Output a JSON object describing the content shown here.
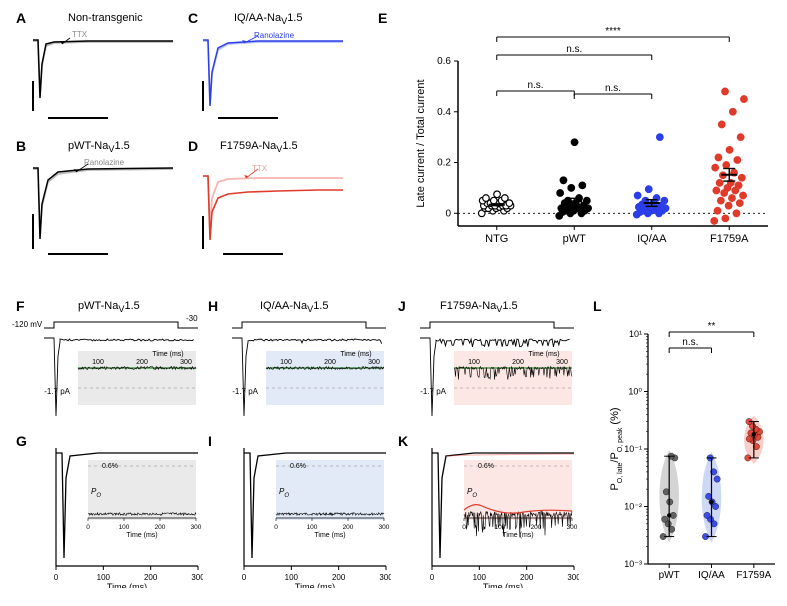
{
  "panels": {
    "A": {
      "label": "A",
      "title": "Non-transgenic",
      "drug": "TTX",
      "color": "#000000",
      "trace_light": "#bbbbbb"
    },
    "B": {
      "label": "B",
      "title": "pWT-Na",
      "sub": "V",
      "suffix": "1.5",
      "drug": "Ranolazine",
      "color": "#000000",
      "trace_light": "#bbbbbb"
    },
    "C": {
      "label": "C",
      "title": "IQ/AA-Na",
      "sub": "V",
      "suffix": "1.5",
      "drug": "Ranolazine",
      "color": "#2b3ee8",
      "trace_light": "#b7c0f7"
    },
    "D": {
      "label": "D",
      "title": "F1759A-Na",
      "sub": "V",
      "suffix": "1.5",
      "drug": "TTX",
      "color": "#e03a2a",
      "trace_light": "#f8b5ad"
    },
    "E": {
      "label": "E",
      "ylabel": "Late current / Total current",
      "yticks": [
        "0",
        "0.2",
        "0.4",
        "0.6"
      ],
      "groups": [
        "NTG",
        "pWT",
        "IQ/AA",
        "F1759A"
      ],
      "annot_ns": "n.s.",
      "annot_stars": "****",
      "colors": {
        "NTG": "#000000",
        "NTG_fill": "#ffffff",
        "pWT": "#000000",
        "IQAA": "#2b3ee8",
        "F1759A": "#e03a2a"
      },
      "data": {
        "NTG": [
          0.0,
          0.01,
          0.01,
          0.02,
          0.02,
          0.02,
          0.02,
          0.025,
          0.03,
          0.03,
          0.03,
          0.03,
          0.03,
          0.03,
          0.04,
          0.04,
          0.04,
          0.04,
          0.05,
          0.05,
          0.05,
          0.06,
          0.06,
          0.075
        ],
        "pWT": [
          -0.01,
          0.0,
          0.0,
          0.005,
          0.01,
          0.01,
          0.01,
          0.02,
          0.02,
          0.02,
          0.02,
          0.02,
          0.03,
          0.03,
          0.04,
          0.04,
          0.05,
          0.05,
          0.06,
          0.08,
          0.1,
          0.11,
          0.13,
          0.28
        ],
        "IQAA": [
          -0.005,
          0.0,
          0.0,
          0.005,
          0.01,
          0.01,
          0.01,
          0.015,
          0.02,
          0.02,
          0.02,
          0.025,
          0.03,
          0.03,
          0.035,
          0.04,
          0.05,
          0.05,
          0.06,
          0.07,
          0.095,
          0.3
        ],
        "F1759A": [
          -0.03,
          -0.02,
          0.0,
          0.01,
          0.03,
          0.04,
          0.05,
          0.06,
          0.07,
          0.08,
          0.09,
          0.09,
          0.1,
          0.11,
          0.12,
          0.12,
          0.14,
          0.15,
          0.16,
          0.18,
          0.19,
          0.21,
          0.22,
          0.25,
          0.3,
          0.35,
          0.4,
          0.45,
          0.48
        ]
      }
    },
    "F": {
      "label": "F",
      "title": "pWT-Na",
      "sub": "V",
      "suffix": "1.5",
      "mv1": "-120 mV",
      "mv2": "-30",
      "cur": "-1.7 pA",
      "bg": "#eaeaea",
      "inset_x": [
        "100",
        "200",
        "300"
      ],
      "inset_xlabel": "Time (ms)"
    },
    "G": {
      "label": "G"
    },
    "H": {
      "label": "H",
      "title": "IQ/AA-Na",
      "sub": "V",
      "suffix": "1.5",
      "cur": "-1.7 pA",
      "bg": "#e2eaf7"
    },
    "I": {
      "label": "I"
    },
    "J": {
      "label": "J",
      "title": "F1759A-Na",
      "sub": "V",
      "suffix": "1.5",
      "cur": "-1.7 pA",
      "bg": "#fde7e4"
    },
    "K": {
      "label": "K"
    },
    "L": {
      "label": "L",
      "ylabel_top": "P",
      "ylabel_o": "O, late",
      "ylabel_slash": "/P",
      "ylabel_o2": "O, peak",
      "ylabel_pct": " (%)",
      "yticks": [
        "10⁻³",
        "10⁻²",
        "10⁻¹",
        "10⁰",
        "10¹"
      ],
      "groups": [
        "pWT",
        "IQ/AA",
        "F1759A"
      ],
      "annot_ns": "n.s.",
      "annot_stars": "**",
      "violin_colors": {
        "pWT": "#cccccc",
        "IQAA": "#c4d0f5",
        "F1759A": "#f8c6bf"
      },
      "point_colors": {
        "pWT": "#555555",
        "IQAA": "#2b3ee8",
        "F1759A": "#e03a2a"
      },
      "data": {
        "pWT": [
          0.003,
          0.004,
          0.005,
          0.006,
          0.007,
          0.012,
          0.018,
          0.07,
          0.075
        ],
        "IQAA": [
          0.003,
          0.005,
          0.006,
          0.007,
          0.01,
          0.012,
          0.015,
          0.03,
          0.04,
          0.07
        ],
        "F1759A": [
          0.07,
          0.11,
          0.14,
          0.15,
          0.16,
          0.18,
          0.19,
          0.2,
          0.22,
          0.25,
          0.3
        ]
      }
    },
    "bottom_axis": {
      "xlabel": "Time (ms)",
      "xticks": [
        "0",
        "100",
        "200",
        "300"
      ]
    },
    "inset_po": {
      "po_label": "P",
      "po_sub": "O",
      "ymax": "0.6%"
    }
  },
  "style": {
    "bg": "#ffffff",
    "axis_color": "#000000",
    "panel_label_fontsize": 14,
    "title_fontsize": 11,
    "axis_label_fontsize": 10,
    "tick_fontsize": 9
  }
}
